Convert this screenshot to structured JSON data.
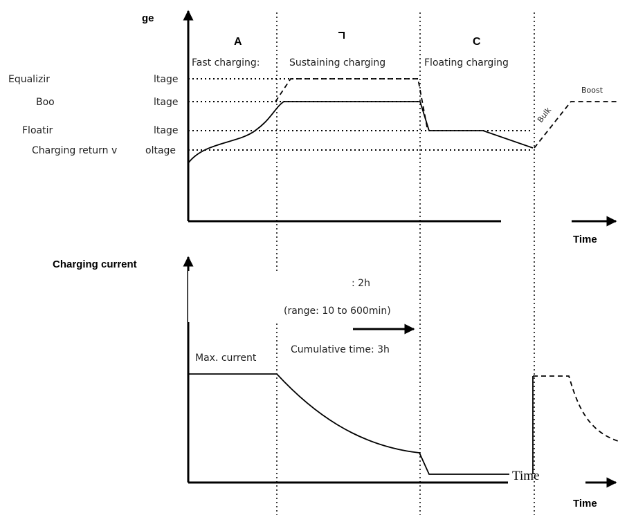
{
  "voltage_chart": {
    "axis_label": "ge",
    "stages": [
      "A",
      "",
      "C"
    ],
    "phases": [
      "Fast charging:",
      "Sustaining charging",
      "Floating charging"
    ],
    "levels": [
      {
        "left": "Equalizir",
        "right": "ltage"
      },
      {
        "left": "Boo",
        "right": "ltage"
      },
      {
        "left": "Floatir",
        "right": "ltage"
      },
      {
        "left": "Charging return v",
        "right": "oltage"
      }
    ],
    "bulk_label": "Bulk",
    "boost_label": "Boost",
    "time_label": "Time"
  },
  "current_chart": {
    "axis_label": "Charging current",
    "duration_text": ": 2h",
    "range_text": "(range: 10 to 600min)",
    "cumulative_text": "Cumulative time: 3h",
    "max_current_label": "Max. current",
    "time_label_serif": "Time",
    "time_label": "Time"
  },
  "icons": {
    "axis_arrows": "arrow-icon"
  }
}
